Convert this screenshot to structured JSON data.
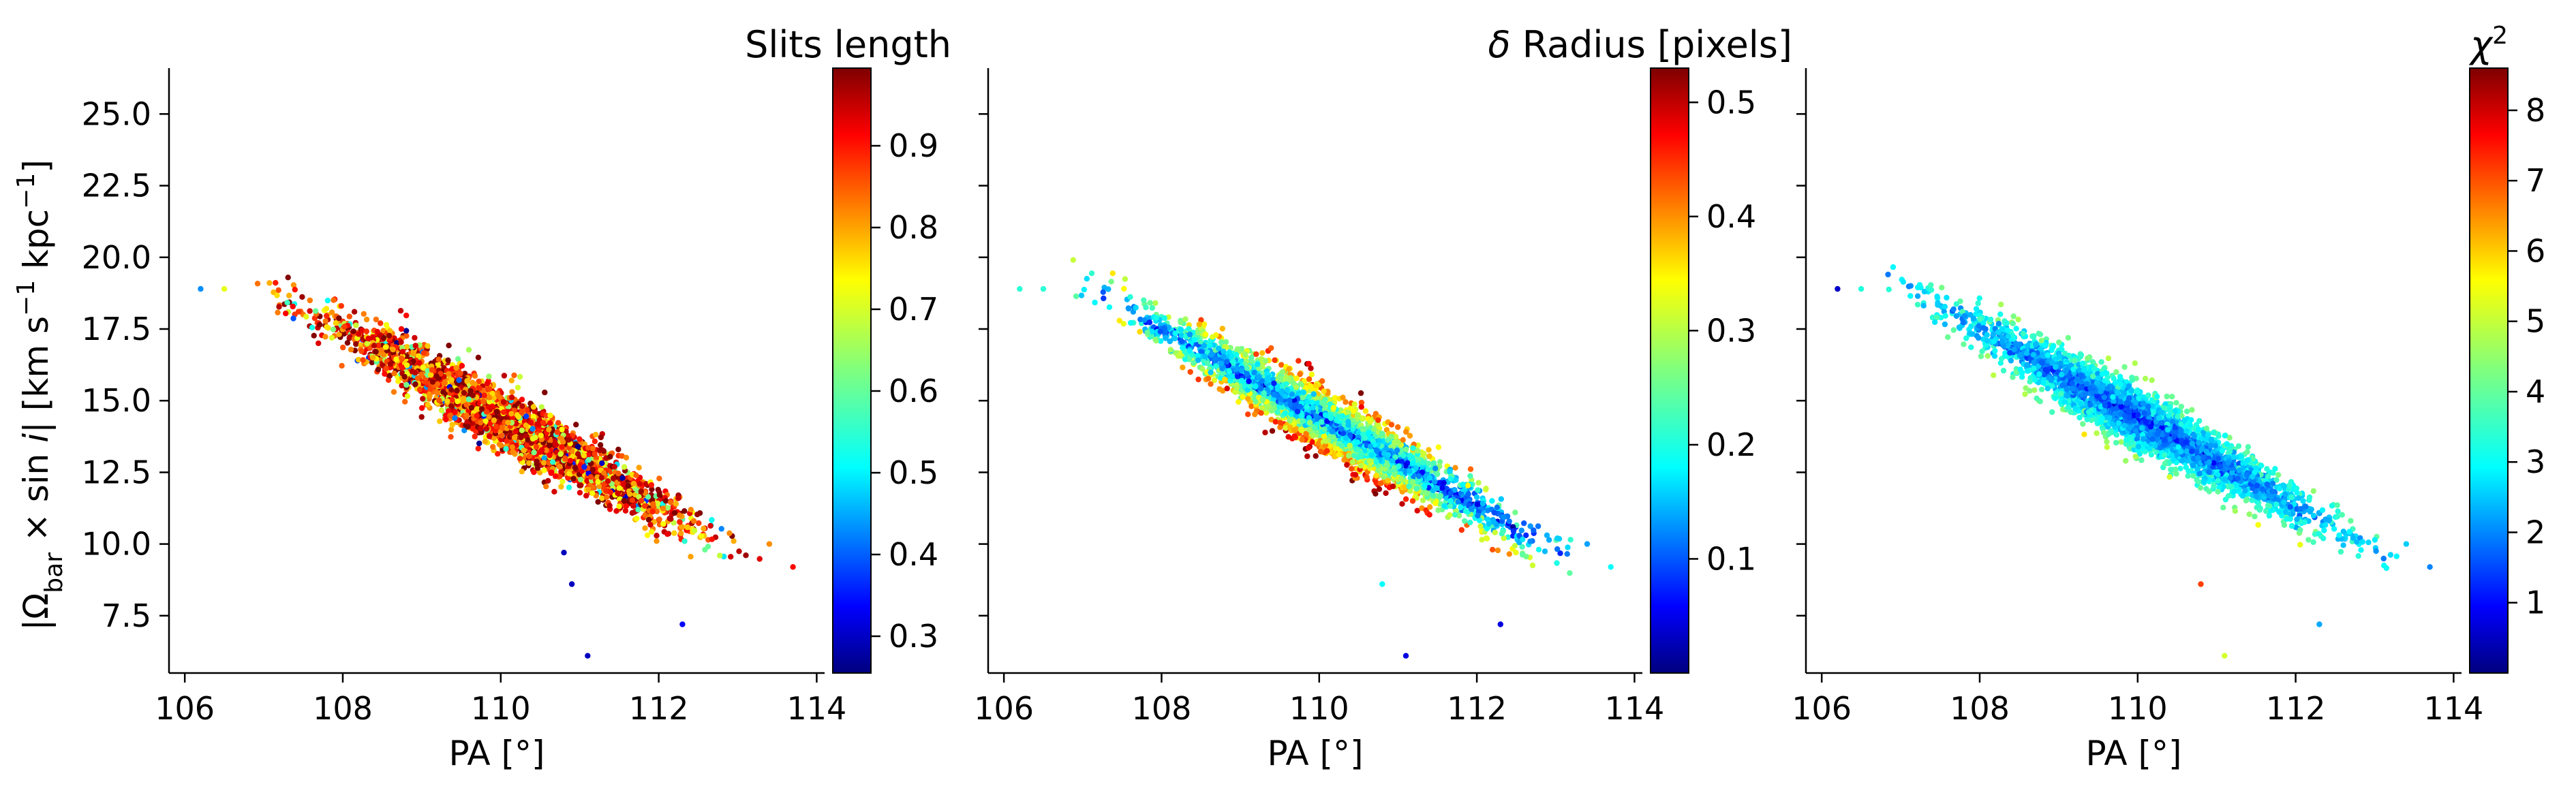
{
  "figure": {
    "ylabel_parts": {
      "open": "|Ω",
      "sub": "bar",
      "mid": " × sin ",
      "italic_i": "i",
      "close": "|   [km s",
      "sup1": "−1",
      "kpc": " kpc",
      "sup2": "−1",
      "end": "]"
    }
  },
  "chart_data": [
    {
      "type": "scatter",
      "xlabel": "PA [°]",
      "ylabel": "|Ω_bar × sin i|  [km s^-1 kpc^-1]",
      "xlim": [
        105.8,
        114.1
      ],
      "ylim": [
        5.5,
        26.6
      ],
      "xticks": [
        "106",
        "108",
        "110",
        "112",
        "114"
      ],
      "yticks": [
        "7.5",
        "10.0",
        "12.5",
        "15.0",
        "17.5",
        "20.0",
        "22.5",
        "25.0"
      ],
      "colorbar": {
        "label": "Slits length",
        "range": [
          0.255,
          0.995
        ],
        "ticks": [
          "0.3",
          "0.4",
          "0.5",
          "0.6",
          "0.7",
          "0.8",
          "0.9"
        ],
        "colormap": "jet"
      },
      "point_cloud": {
        "n_points": 3000,
        "x_range": [
          106.2,
          113.7
        ],
        "trend": {
          "slope": -1.55,
          "intercept_at_110": 14.4
        },
        "y_scatter": 1.2,
        "color_mean": 0.86,
        "color_spread": 0.12
      },
      "outliers": [
        {
          "x": 106.2,
          "y": 18.9,
          "c": 0.45
        },
        {
          "x": 106.5,
          "y": 18.9,
          "c": 0.7
        },
        {
          "x": 110.8,
          "y": 9.7,
          "c": 0.3
        },
        {
          "x": 110.9,
          "y": 8.6,
          "c": 0.3
        },
        {
          "x": 111.1,
          "y": 6.1,
          "c": 0.3
        },
        {
          "x": 112.3,
          "y": 7.2,
          "c": 0.35
        },
        {
          "x": 113.7,
          "y": 9.2,
          "c": 0.9
        },
        {
          "x": 113.4,
          "y": 10.0,
          "c": 0.8
        }
      ],
      "grid": false
    },
    {
      "type": "scatter",
      "xlabel": "PA [°]",
      "ylabel": "",
      "xlim": [
        105.8,
        114.1
      ],
      "ylim": [
        5.5,
        26.6
      ],
      "xticks": [
        "106",
        "108",
        "110",
        "112",
        "114"
      ],
      "yticks": [],
      "colorbar": {
        "label": "δ Radius [pixels]",
        "range": [
          0.0,
          0.53
        ],
        "ticks": [
          "0.1",
          "0.2",
          "0.3",
          "0.4",
          "0.5"
        ],
        "colormap": "jet"
      },
      "point_cloud": {
        "n_points": 3000,
        "x_range": [
          106.2,
          113.7
        ],
        "trend": {
          "slope": -1.55,
          "intercept_at_110": 14.4
        },
        "y_scatter": 1.2,
        "color_mean": 0.12,
        "color_spread": 0.08,
        "color_depends_on_residual": true
      },
      "outliers": [
        {
          "x": 106.2,
          "y": 18.9,
          "c": 0.22
        },
        {
          "x": 106.5,
          "y": 18.9,
          "c": 0.22
        },
        {
          "x": 110.8,
          "y": 8.6,
          "c": 0.2
        },
        {
          "x": 111.1,
          "y": 6.1,
          "c": 0.05
        },
        {
          "x": 112.3,
          "y": 7.2,
          "c": 0.05
        },
        {
          "x": 113.7,
          "y": 9.2,
          "c": 0.2
        },
        {
          "x": 113.4,
          "y": 10.0,
          "c": 0.15
        }
      ],
      "grid": false
    },
    {
      "type": "scatter",
      "xlabel": "PA [°]",
      "ylabel": "",
      "xlim": [
        105.8,
        114.1
      ],
      "ylim": [
        5.5,
        26.6
      ],
      "xticks": [
        "106",
        "108",
        "110",
        "112",
        "114"
      ],
      "yticks": [],
      "colorbar": {
        "label": "χ²",
        "range": [
          0.0,
          8.6
        ],
        "ticks": [
          "1",
          "2",
          "3",
          "4",
          "5",
          "6",
          "7",
          "8"
        ],
        "colormap": "jet"
      },
      "point_cloud": {
        "n_points": 3000,
        "x_range": [
          106.2,
          113.7
        ],
        "trend": {
          "slope": -1.55,
          "intercept_at_110": 14.4
        },
        "y_scatter": 1.2,
        "color_mean": 1.6,
        "color_spread": 0.8,
        "color_depends_on_residual": true
      },
      "outliers": [
        {
          "x": 106.2,
          "y": 18.9,
          "c": 0.6
        },
        {
          "x": 106.5,
          "y": 18.9,
          "c": 3.5
        },
        {
          "x": 110.8,
          "y": 8.6,
          "c": 7.0
        },
        {
          "x": 111.1,
          "y": 6.1,
          "c": 5.0
        },
        {
          "x": 112.3,
          "y": 7.2,
          "c": 2.5
        },
        {
          "x": 113.7,
          "y": 9.2,
          "c": 2.2
        },
        {
          "x": 113.4,
          "y": 10.0,
          "c": 2.8
        }
      ],
      "grid": false
    }
  ]
}
